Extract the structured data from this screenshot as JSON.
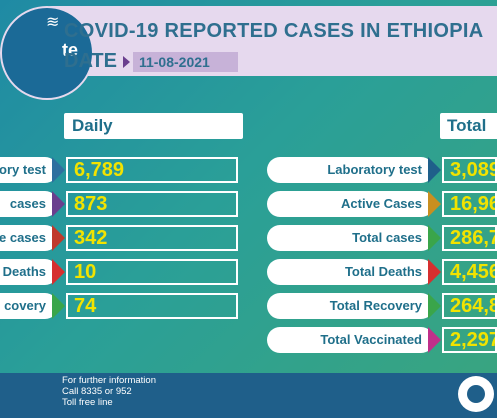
{
  "header": {
    "title": "COVID-19 REPORTED CASES IN ETHIOPIA",
    "date_label": "DATE",
    "date_value": "11-08-2021",
    "logo_text": "te"
  },
  "daily": {
    "heading": "Daily",
    "rows": [
      {
        "label": "ory test",
        "value": "6,789",
        "marker_color": "#2f6f9f"
      },
      {
        "label": "cases",
        "value": "873",
        "marker_color": "#6a3f8e"
      },
      {
        "label": "e cases",
        "value": "342",
        "marker_color": "#c0392b"
      },
      {
        "label": "Deaths",
        "value": "10",
        "marker_color": "#d62f2f"
      },
      {
        "label": "covery",
        "value": "74",
        "marker_color": "#3aa54a"
      }
    ]
  },
  "total": {
    "heading": "Total",
    "rows": [
      {
        "label": "Laboratory test",
        "value": "3,089",
        "marker_color": "#1f5f8a"
      },
      {
        "label": "Active Cases",
        "value": "16,96",
        "marker_color": "#c98f1f"
      },
      {
        "label": "Total cases",
        "value": "286,7",
        "marker_color": "#3aa54a"
      },
      {
        "label": "Total Deaths",
        "value": "4,456",
        "marker_color": "#d62f2f"
      },
      {
        "label": "Total Recovery",
        "value": "264,8",
        "marker_color": "#3aa54a"
      },
      {
        "label": "Total Vaccinated",
        "value": "2,297",
        "marker_color": "#c02f8a"
      }
    ]
  },
  "footer": {
    "line1": "For further information",
    "line2": "Call 8335 or 952",
    "line3": "Toll free line"
  }
}
